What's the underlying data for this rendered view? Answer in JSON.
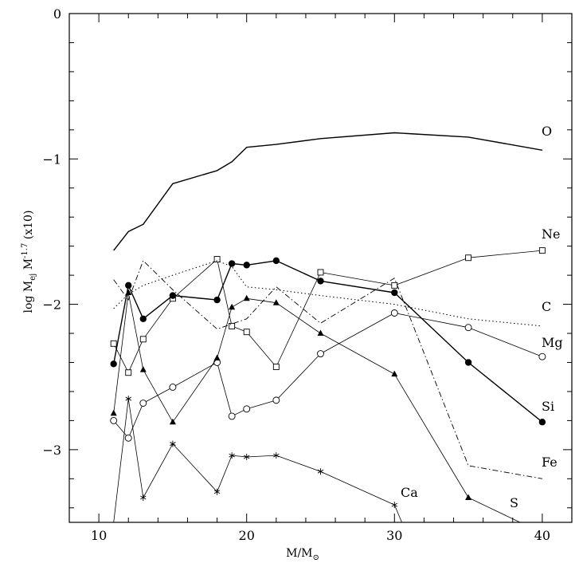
{
  "chart_data": {
    "type": "line",
    "xlabel": "M/M",
    "xlabel_sub": "⊙",
    "ylabel_parts": [
      "log M",
      "ej",
      " M",
      "-1.7",
      " (x10)"
    ],
    "xlim": [
      8,
      42
    ],
    "ylim": [
      -3.5,
      0
    ],
    "xticks": [
      10,
      20,
      30,
      40
    ],
    "yticks": [
      0,
      -1,
      -2,
      -3
    ],
    "series": [
      {
        "name": "O",
        "style": "solid-thick",
        "marker": "none",
        "x": [
          11,
          12,
          13,
          15,
          18,
          19,
          20,
          22,
          25,
          30,
          35,
          40
        ],
        "y": [
          -1.63,
          -1.5,
          -1.45,
          -1.17,
          -1.08,
          -1.02,
          -0.92,
          -0.9,
          -0.86,
          -0.82,
          -0.85,
          -0.94
        ]
      },
      {
        "name": "Ne",
        "style": "solid",
        "marker": "open-square",
        "x": [
          11,
          12,
          13,
          15,
          18,
          19,
          20,
          22,
          25,
          30,
          35,
          40
        ],
        "y": [
          -2.27,
          -2.47,
          -2.24,
          -1.96,
          -1.69,
          -2.15,
          -2.19,
          -2.43,
          -1.78,
          -1.87,
          -1.68,
          -1.63
        ]
      },
      {
        "name": "C",
        "style": "dotted",
        "marker": "none",
        "x": [
          11,
          12,
          13,
          15,
          18,
          19,
          20,
          22,
          25,
          30,
          35,
          40
        ],
        "y": [
          -2.03,
          -1.93,
          -1.87,
          -1.8,
          -1.7,
          -1.74,
          -1.88,
          -1.9,
          -1.94,
          -2.0,
          -2.1,
          -2.15
        ]
      },
      {
        "name": "Mg",
        "style": "solid",
        "marker": "open-circle",
        "x": [
          11,
          12,
          13,
          15,
          18,
          19,
          20,
          22,
          25,
          30,
          35,
          40
        ],
        "y": [
          -2.8,
          -2.92,
          -2.68,
          -2.57,
          -2.4,
          -2.77,
          -2.72,
          -2.66,
          -2.34,
          -2.06,
          -2.16,
          -2.36
        ]
      },
      {
        "name": "Si",
        "style": "solid-thick",
        "marker": "filled-circle",
        "x": [
          11,
          12,
          13,
          15,
          18,
          19,
          20,
          22,
          25,
          30,
          35,
          40
        ],
        "y": [
          -2.41,
          -1.87,
          -2.1,
          -1.94,
          -1.97,
          -1.72,
          -1.73,
          -1.7,
          -1.84,
          -1.92,
          -2.4,
          -2.81
        ]
      },
      {
        "name": "Fe",
        "style": "dashdot",
        "marker": "none",
        "x": [
          11,
          12,
          13,
          15,
          18,
          20,
          22,
          25,
          30,
          35,
          40
        ],
        "y": [
          -1.83,
          -1.97,
          -1.7,
          -1.9,
          -2.17,
          -2.1,
          -1.88,
          -2.13,
          -1.82,
          -3.11,
          -3.2
        ]
      },
      {
        "name": "S",
        "style": "solid",
        "marker": "filled-triangle",
        "x": [
          11,
          12,
          13,
          15,
          18,
          19,
          20,
          22,
          25,
          30,
          35,
          38.5
        ],
        "y": [
          -2.75,
          -1.92,
          -2.45,
          -2.81,
          -2.37,
          -2.02,
          -1.96,
          -1.99,
          -2.2,
          -2.48,
          -3.33,
          -3.5
        ]
      },
      {
        "name": "Ca",
        "style": "solid",
        "marker": "asterisk",
        "x": [
          11,
          12,
          13,
          15,
          18,
          19,
          20,
          22,
          25,
          30,
          30.5
        ],
        "y": [
          -3.5,
          -2.65,
          -3.33,
          -2.96,
          -3.29,
          -3.04,
          -3.05,
          -3.04,
          -3.15,
          -3.38,
          -3.5
        ]
      }
    ]
  }
}
